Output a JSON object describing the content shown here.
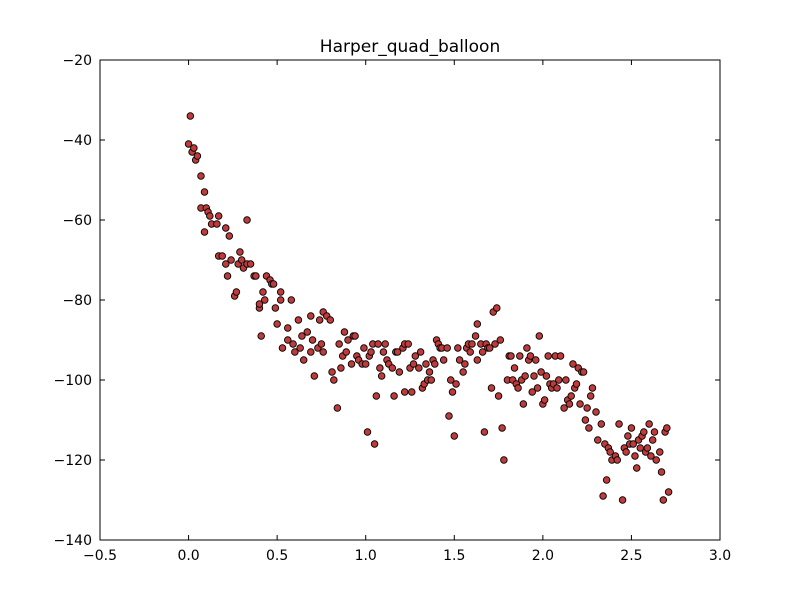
{
  "chart_data": {
    "type": "scatter",
    "title": "Harper_quad_balloon",
    "xlabel": "",
    "ylabel": "",
    "xlim": [
      -0.5,
      3.0
    ],
    "ylim": [
      -140,
      -20
    ],
    "x_ticks": [
      -0.5,
      0.0,
      0.5,
      1.0,
      1.5,
      2.0,
      2.5,
      3.0
    ],
    "x_tick_labels": [
      "−0.5",
      "0.0",
      "0.5",
      "1.0",
      "1.5",
      "2.0",
      "2.5",
      "3.0"
    ],
    "y_ticks": [
      -140,
      -120,
      -100,
      -80,
      -60,
      -40,
      -20
    ],
    "y_tick_labels": [
      "−140",
      "−120",
      "−100",
      "−80",
      "−60",
      "−40",
      "−20"
    ],
    "grid": false,
    "marker_color": "#bf3a3a",
    "marker_edge_color": "#000000",
    "series": [
      {
        "points": [
          [
            0.01,
            -34
          ],
          [
            0.0,
            -41
          ],
          [
            0.02,
            -43
          ],
          [
            0.03,
            -42
          ],
          [
            0.04,
            -45
          ],
          [
            0.05,
            -44
          ],
          [
            0.07,
            -49
          ],
          [
            0.09,
            -53
          ],
          [
            0.07,
            -57
          ],
          [
            0.1,
            -57
          ],
          [
            0.11,
            -58
          ],
          [
            0.12,
            -59
          ],
          [
            0.09,
            -63
          ],
          [
            0.13,
            -61
          ],
          [
            0.16,
            -61
          ],
          [
            0.17,
            -59
          ],
          [
            0.17,
            -69
          ],
          [
            0.19,
            -69
          ],
          [
            0.21,
            -62
          ],
          [
            0.21,
            -71
          ],
          [
            0.23,
            -64
          ],
          [
            0.22,
            -74
          ],
          [
            0.24,
            -70
          ],
          [
            0.26,
            -79
          ],
          [
            0.27,
            -78
          ],
          [
            0.28,
            -71
          ],
          [
            0.29,
            -68
          ],
          [
            0.3,
            -70
          ],
          [
            0.31,
            -72
          ],
          [
            0.33,
            -71
          ],
          [
            0.33,
            -60
          ],
          [
            0.35,
            -71
          ],
          [
            0.37,
            -74
          ],
          [
            0.38,
            -74
          ],
          [
            0.4,
            -82
          ],
          [
            0.4,
            -81
          ],
          [
            0.42,
            -78
          ],
          [
            0.41,
            -89
          ],
          [
            0.43,
            -80
          ],
          [
            0.44,
            -74
          ],
          [
            0.46,
            -75
          ],
          [
            0.47,
            -76
          ],
          [
            0.48,
            -76
          ],
          [
            0.49,
            -82
          ],
          [
            0.5,
            -86
          ],
          [
            0.52,
            -78
          ],
          [
            0.52,
            -80
          ],
          [
            0.53,
            -92
          ],
          [
            0.56,
            -90
          ],
          [
            0.56,
            -87
          ],
          [
            0.58,
            -80
          ],
          [
            0.59,
            -91
          ],
          [
            0.6,
            -93
          ],
          [
            0.62,
            -85
          ],
          [
            0.63,
            -92
          ],
          [
            0.64,
            -89
          ],
          [
            0.65,
            -95
          ],
          [
            0.67,
            -88
          ],
          [
            0.69,
            -84
          ],
          [
            0.69,
            -93
          ],
          [
            0.7,
            -90
          ],
          [
            0.71,
            -99
          ],
          [
            0.73,
            -92
          ],
          [
            0.74,
            -85
          ],
          [
            0.75,
            -91
          ],
          [
            0.76,
            -93
          ],
          [
            0.76,
            -83
          ],
          [
            0.78,
            -84
          ],
          [
            0.8,
            -85
          ],
          [
            0.81,
            -98
          ],
          [
            0.82,
            -100
          ],
          [
            0.84,
            -107
          ],
          [
            0.85,
            -91
          ],
          [
            0.86,
            -97
          ],
          [
            0.87,
            -94
          ],
          [
            0.88,
            -88
          ],
          [
            0.89,
            -93
          ],
          [
            0.9,
            -90
          ],
          [
            0.92,
            -96
          ],
          [
            0.93,
            -89
          ],
          [
            0.94,
            -89
          ],
          [
            0.95,
            -94
          ],
          [
            0.96,
            -95
          ],
          [
            0.98,
            -96
          ],
          [
            0.99,
            -92
          ],
          [
            1.0,
            -96
          ],
          [
            1.01,
            -113
          ],
          [
            1.02,
            -94
          ],
          [
            1.03,
            -93
          ],
          [
            1.04,
            -91
          ],
          [
            1.05,
            -116
          ],
          [
            1.06,
            -104
          ],
          [
            1.07,
            -91
          ],
          [
            1.08,
            -97
          ],
          [
            1.09,
            -99
          ],
          [
            1.1,
            -93
          ],
          [
            1.11,
            -91
          ],
          [
            1.12,
            -95
          ],
          [
            1.13,
            -96
          ],
          [
            1.15,
            -97
          ],
          [
            1.16,
            -104
          ],
          [
            1.17,
            -93
          ],
          [
            1.18,
            -93
          ],
          [
            1.19,
            -98
          ],
          [
            1.21,
            -92
          ],
          [
            1.22,
            -91
          ],
          [
            1.22,
            -103
          ],
          [
            1.24,
            -91
          ],
          [
            1.25,
            -97
          ],
          [
            1.26,
            -103
          ],
          [
            1.27,
            -96
          ],
          [
            1.28,
            -94
          ],
          [
            1.3,
            -97
          ],
          [
            1.31,
            -93
          ],
          [
            1.32,
            -102
          ],
          [
            1.33,
            -101
          ],
          [
            1.34,
            -96
          ],
          [
            1.35,
            -100
          ],
          [
            1.36,
            -98
          ],
          [
            1.37,
            -100
          ],
          [
            1.38,
            -95
          ],
          [
            1.39,
            -96
          ],
          [
            1.4,
            -90
          ],
          [
            1.41,
            -91
          ],
          [
            1.42,
            -92
          ],
          [
            1.43,
            -92
          ],
          [
            1.44,
            -95
          ],
          [
            1.46,
            -92
          ],
          [
            1.47,
            -109
          ],
          [
            1.48,
            -100
          ],
          [
            1.49,
            -103
          ],
          [
            1.5,
            -114
          ],
          [
            1.51,
            -101
          ],
          [
            1.52,
            -92
          ],
          [
            1.53,
            -95
          ],
          [
            1.55,
            -98
          ],
          [
            1.56,
            -96
          ],
          [
            1.57,
            -92
          ],
          [
            1.58,
            -91
          ],
          [
            1.59,
            -93
          ],
          [
            1.6,
            -91
          ],
          [
            1.62,
            -89
          ],
          [
            1.63,
            -86
          ],
          [
            1.63,
            -95
          ],
          [
            1.65,
            -91
          ],
          [
            1.66,
            -93
          ],
          [
            1.67,
            -113
          ],
          [
            1.68,
            -91
          ],
          [
            1.69,
            -92
          ],
          [
            1.7,
            -92
          ],
          [
            1.71,
            -102
          ],
          [
            1.72,
            -83
          ],
          [
            1.73,
            -91
          ],
          [
            1.74,
            -82
          ],
          [
            1.75,
            -104
          ],
          [
            1.76,
            -90
          ],
          [
            1.77,
            -112
          ],
          [
            1.78,
            -120
          ],
          [
            1.8,
            -100
          ],
          [
            1.81,
            -94
          ],
          [
            1.82,
            -94
          ],
          [
            1.83,
            -100
          ],
          [
            1.84,
            -97
          ],
          [
            1.85,
            -101
          ],
          [
            1.86,
            -102
          ],
          [
            1.87,
            -94
          ],
          [
            1.88,
            -100
          ],
          [
            1.89,
            -106
          ],
          [
            1.9,
            -99
          ],
          [
            1.91,
            -92
          ],
          [
            1.92,
            -95
          ],
          [
            1.93,
            -94
          ],
          [
            1.94,
            -103
          ],
          [
            1.95,
            -99
          ],
          [
            1.96,
            -95
          ],
          [
            1.97,
            -102
          ],
          [
            1.98,
            -89
          ],
          [
            1.99,
            -98
          ],
          [
            2.0,
            -106
          ],
          [
            2.01,
            -105
          ],
          [
            2.02,
            -99
          ],
          [
            2.03,
            -94
          ],
          [
            2.04,
            -101
          ],
          [
            2.05,
            -102
          ],
          [
            2.06,
            -101
          ],
          [
            2.07,
            -94
          ],
          [
            2.08,
            -102
          ],
          [
            2.09,
            -100
          ],
          [
            2.1,
            -94
          ],
          [
            2.12,
            -107
          ],
          [
            2.13,
            -100
          ],
          [
            2.14,
            -105
          ],
          [
            2.15,
            -106
          ],
          [
            2.16,
            -104
          ],
          [
            2.17,
            -96
          ],
          [
            2.18,
            -102
          ],
          [
            2.19,
            -101
          ],
          [
            2.2,
            -97
          ],
          [
            2.21,
            -106
          ],
          [
            2.22,
            -98
          ],
          [
            2.23,
            -98
          ],
          [
            2.24,
            -110
          ],
          [
            2.25,
            -107
          ],
          [
            2.26,
            -112
          ],
          [
            2.27,
            -104
          ],
          [
            2.28,
            -102
          ],
          [
            2.3,
            -108
          ],
          [
            2.31,
            -115
          ],
          [
            2.33,
            -111
          ],
          [
            2.34,
            -129
          ],
          [
            2.35,
            -116
          ],
          [
            2.36,
            -125
          ],
          [
            2.37,
            -117
          ],
          [
            2.38,
            -118
          ],
          [
            2.39,
            -120
          ],
          [
            2.41,
            -119
          ],
          [
            2.42,
            -120
          ],
          [
            2.43,
            -111
          ],
          [
            2.45,
            -130
          ],
          [
            2.46,
            -117
          ],
          [
            2.47,
            -118
          ],
          [
            2.48,
            -114
          ],
          [
            2.49,
            -116
          ],
          [
            2.5,
            -112
          ],
          [
            2.51,
            -116
          ],
          [
            2.52,
            -119
          ],
          [
            2.53,
            -122
          ],
          [
            2.54,
            -115
          ],
          [
            2.55,
            -117
          ],
          [
            2.56,
            -114
          ],
          [
            2.57,
            -113
          ],
          [
            2.58,
            -118
          ],
          [
            2.59,
            -117
          ],
          [
            2.6,
            -111
          ],
          [
            2.61,
            -119
          ],
          [
            2.62,
            -115
          ],
          [
            2.63,
            -113
          ],
          [
            2.64,
            -120
          ],
          [
            2.66,
            -118
          ],
          [
            2.67,
            -123
          ],
          [
            2.68,
            -130
          ],
          [
            2.69,
            -113
          ],
          [
            2.7,
            -112
          ],
          [
            2.71,
            -128
          ]
        ]
      }
    ]
  }
}
